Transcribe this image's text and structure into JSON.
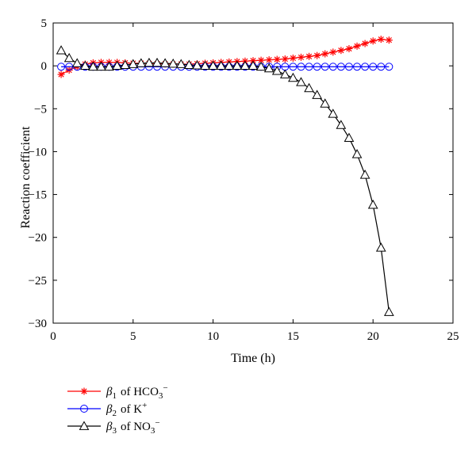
{
  "chart_data": {
    "type": "line",
    "xlabel": "Time (h)",
    "ylabel": "Reaction coefficient",
    "xlim": [
      0,
      25
    ],
    "ylim": [
      -30,
      5
    ],
    "xticks": [
      "0",
      "5",
      "10",
      "15",
      "20",
      "25"
    ],
    "yticks": [
      "5",
      "0",
      "−5",
      "−10",
      "−15",
      "−20",
      "−25",
      "−30"
    ],
    "grid": false,
    "legend_position": "below-left",
    "x": [
      0.5,
      1.0,
      1.5,
      2.0,
      2.5,
      3.0,
      3.5,
      4.0,
      4.5,
      5.0,
      5.5,
      6.0,
      6.5,
      7.0,
      7.5,
      8.0,
      8.5,
      9.0,
      9.5,
      10.0,
      10.5,
      11.0,
      11.5,
      12.0,
      12.5,
      13.0,
      13.5,
      14.0,
      14.5,
      15.0,
      15.5,
      16.0,
      16.5,
      17.0,
      17.5,
      18.0,
      18.5,
      19.0,
      19.5,
      20.0,
      20.5,
      21.0
    ],
    "series": [
      {
        "name_parts": {
          "symbol": "β",
          "sub": "1",
          "of": "of HCO",
          "ion_sub": "3",
          "charge": "−"
        },
        "color": "#ff0000",
        "marker": "asterisk",
        "values": [
          -1.0,
          -0.5,
          -0.1,
          0.2,
          0.35,
          0.4,
          0.4,
          0.4,
          0.35,
          0.3,
          0.3,
          0.28,
          0.25,
          0.22,
          0.2,
          0.2,
          0.2,
          0.25,
          0.3,
          0.35,
          0.4,
          0.45,
          0.5,
          0.55,
          0.6,
          0.65,
          0.7,
          0.75,
          0.8,
          0.9,
          1.0,
          1.1,
          1.2,
          1.4,
          1.6,
          1.8,
          2.0,
          2.3,
          2.6,
          2.9,
          3.1,
          3.0
        ]
      },
      {
        "name_parts": {
          "symbol": "β",
          "sub": "2",
          "of": "of K",
          "ion_sub": "",
          "charge": "+"
        },
        "color": "#0000ff",
        "marker": "circle",
        "values": [
          -0.1,
          -0.1,
          -0.1,
          -0.1,
          -0.1,
          -0.1,
          -0.1,
          -0.1,
          -0.1,
          -0.1,
          -0.1,
          -0.1,
          -0.1,
          -0.1,
          -0.1,
          -0.1,
          -0.1,
          -0.1,
          -0.1,
          -0.1,
          -0.1,
          -0.1,
          -0.1,
          -0.1,
          -0.1,
          -0.1,
          -0.1,
          -0.1,
          -0.1,
          -0.1,
          -0.1,
          -0.1,
          -0.1,
          -0.1,
          -0.1,
          -0.1,
          -0.1,
          -0.1,
          -0.1,
          -0.1,
          -0.1,
          -0.1
        ]
      },
      {
        "name_parts": {
          "symbol": "β",
          "sub": "3",
          "of": "of NO",
          "ion_sub": "3",
          "charge": "−"
        },
        "color": "#000000",
        "marker": "triangle",
        "values": [
          1.8,
          0.9,
          0.3,
          0.0,
          -0.1,
          -0.1,
          -0.1,
          0.0,
          0.1,
          0.2,
          0.3,
          0.35,
          0.35,
          0.3,
          0.25,
          0.2,
          0.1,
          0.05,
          0.0,
          0.0,
          0.0,
          0.0,
          0.0,
          0.0,
          0.0,
          -0.1,
          -0.3,
          -0.6,
          -1.0,
          -1.4,
          -1.9,
          -2.6,
          -3.4,
          -4.4,
          -5.6,
          -6.9,
          -8.4,
          -10.3,
          -12.7,
          -16.2,
          -21.2,
          -28.7
        ]
      }
    ]
  }
}
